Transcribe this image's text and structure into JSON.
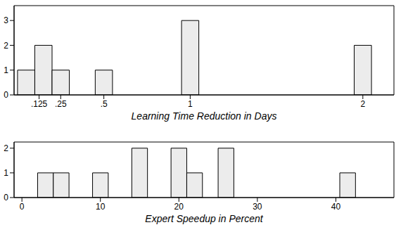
{
  "chart_data": [
    {
      "type": "histogram",
      "x_label": "Learning Time Reduction in Days",
      "bins": [
        0,
        0.1,
        0.2,
        0.3,
        0.45,
        0.55,
        0.95,
        1.05,
        1.95,
        2.05
      ],
      "counts": [
        1,
        2,
        1,
        0,
        1,
        0,
        3,
        0,
        2
      ],
      "color": "#ececec",
      "xlim": [
        -0.02,
        2.18
      ],
      "xticks": [
        {
          "value": 0.125,
          "label": ".125"
        },
        {
          "value": 0.25,
          "label": ".25"
        },
        {
          "value": 0.5,
          "label": ".5"
        },
        1,
        2
      ],
      "ylim": [
        0,
        3.6
      ],
      "yticks": [
        0,
        1,
        2,
        3
      ]
    },
    {
      "type": "histogram",
      "x_label": "Expert Speedup in Percent",
      "bins": [
        2,
        4,
        6,
        9,
        11,
        14,
        16,
        19,
        21,
        23,
        25,
        27,
        40.5,
        42.5
      ],
      "counts": [
        1,
        1,
        0,
        1,
        0,
        2,
        0,
        2,
        1,
        0,
        2,
        0,
        1
      ],
      "color": "#ececec",
      "xlim": [
        -1,
        47.4
      ],
      "xticks": [
        0,
        10,
        20,
        30,
        40
      ],
      "ylim": [
        0,
        2.25
      ],
      "yticks": [
        0,
        1,
        2
      ]
    }
  ]
}
